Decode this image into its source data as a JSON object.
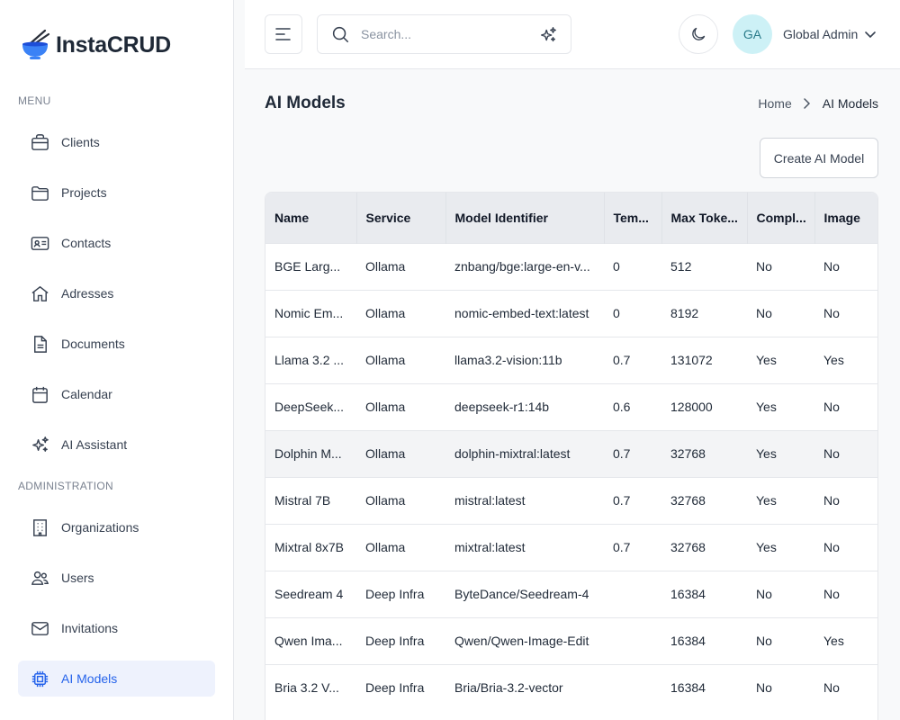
{
  "app": {
    "name": "InstaCRUD"
  },
  "sidebar": {
    "menu_label": "MENU",
    "admin_label": "ADMINISTRATION",
    "menu_items": [
      {
        "label": "Clients",
        "icon": "briefcase-icon"
      },
      {
        "label": "Projects",
        "icon": "folder-icon"
      },
      {
        "label": "Contacts",
        "icon": "contact-card-icon"
      },
      {
        "label": "Adresses",
        "icon": "home-icon"
      },
      {
        "label": "Documents",
        "icon": "document-icon"
      },
      {
        "label": "Calendar",
        "icon": "calendar-icon"
      },
      {
        "label": "AI Assistant",
        "icon": "sparkles-icon"
      }
    ],
    "admin_items": [
      {
        "label": "Organizations",
        "icon": "building-icon"
      },
      {
        "label": "Users",
        "icon": "users-icon"
      },
      {
        "label": "Invitations",
        "icon": "envelope-icon"
      },
      {
        "label": "AI Models",
        "icon": "chip-icon",
        "active": true
      }
    ]
  },
  "header": {
    "search_placeholder": "Search...",
    "avatar_initials": "GA",
    "user_name": "Global Admin"
  },
  "page": {
    "title": "AI Models",
    "breadcrumb": [
      "Home",
      "AI Models"
    ],
    "create_label": "Create AI Model"
  },
  "table": {
    "columns": [
      "Name",
      "Service",
      "Model Identifier",
      "Tem...",
      "Max Toke...",
      "Compl...",
      "Image"
    ],
    "rows": [
      [
        "BGE Larg...",
        "Ollama",
        "znbang/bge:large-en-v...",
        "0",
        "512",
        "No",
        "No"
      ],
      [
        "Nomic Em...",
        "Ollama",
        "nomic-embed-text:latest",
        "0",
        "8192",
        "No",
        "No"
      ],
      [
        "Llama 3.2 ...",
        "Ollama",
        "llama3.2-vision:11b",
        "0.7",
        "131072",
        "Yes",
        "Yes"
      ],
      [
        "DeepSeek...",
        "Ollama",
        "deepseek-r1:14b",
        "0.6",
        "128000",
        "Yes",
        "No"
      ],
      [
        "Dolphin M...",
        "Ollama",
        "dolphin-mixtral:latest",
        "0.7",
        "32768",
        "Yes",
        "No"
      ],
      [
        "Mistral 7B",
        "Ollama",
        "mistral:latest",
        "0.7",
        "32768",
        "Yes",
        "No"
      ],
      [
        "Mixtral 8x7B",
        "Ollama",
        "mixtral:latest",
        "0.7",
        "32768",
        "Yes",
        "No"
      ],
      [
        "Seedream 4",
        "Deep Infra",
        "ByteDance/Seedream-4",
        "",
        "16384",
        "No",
        "No"
      ],
      [
        "Qwen Ima...",
        "Deep Infra",
        "Qwen/Qwen-Image-Edit",
        "",
        "16384",
        "No",
        "Yes"
      ],
      [
        "Bria 3.2 V...",
        "Deep Infra",
        "Bria/Bria-3.2-vector",
        "",
        "16384",
        "No",
        "No"
      ]
    ]
  },
  "colors": {
    "accent": "#2563eb",
    "active_bg": "#eef2fd",
    "table_header_bg": "#e9ebef"
  }
}
